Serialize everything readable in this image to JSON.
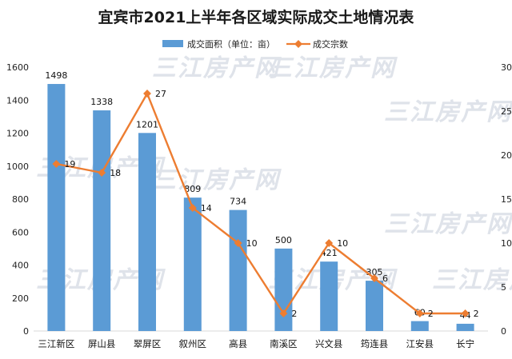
{
  "chart_data": {
    "type": "bar",
    "title": "宜宾市2021上半年各区域实际成交土地情况表",
    "categories": [
      "三江新区",
      "屏山县",
      "翠屏区",
      "叙州区",
      "高县",
      "南溪区",
      "兴文县",
      "筠连县",
      "江安县",
      "长宁"
    ],
    "series": [
      {
        "name": "成交面积（单位：亩）",
        "kind": "bar",
        "axis": "left",
        "color": "#5b9bd5",
        "values": [
          1498,
          1338,
          1201,
          809,
          734,
          500,
          421,
          305,
          60,
          44
        ]
      },
      {
        "name": "成交宗数",
        "kind": "line",
        "axis": "right",
        "color": "#ed7d31",
        "values": [
          19,
          18,
          27,
          14,
          10,
          2,
          10,
          6,
          2,
          2
        ]
      }
    ],
    "y_left": {
      "min": 0,
      "max": 1600,
      "ticks": [
        0,
        200,
        400,
        600,
        800,
        1000,
        1200,
        1400,
        1600
      ]
    },
    "y_right": {
      "min": 0,
      "max": 30,
      "ticks": [
        0,
        5,
        10,
        15,
        20,
        25,
        30
      ]
    },
    "legend_position": "top-center",
    "grid": false,
    "watermark": "三江房产网"
  }
}
